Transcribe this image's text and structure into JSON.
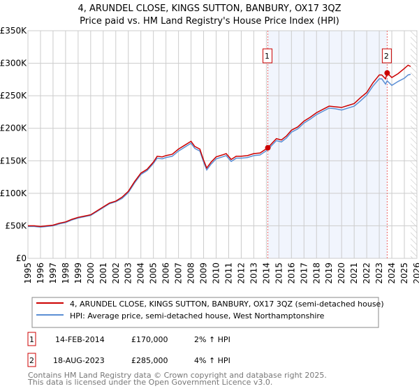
{
  "chart_data": {
    "type": "line",
    "title": "4, ARUNDEL CLOSE, KINGS SUTTON, BANBURY, OX17 3QZ",
    "subtitle": "Price paid vs. HM Land Registry's House Price Index (HPI)",
    "xlim": [
      1995,
      2026
    ],
    "ylim": [
      0,
      350000
    ],
    "y_ticks": [
      {
        "v": 0,
        "label": "£0"
      },
      {
        "v": 50000,
        "label": "£50K"
      },
      {
        "v": 100000,
        "label": "£100K"
      },
      {
        "v": 150000,
        "label": "£150K"
      },
      {
        "v": 200000,
        "label": "£200K"
      },
      {
        "v": 250000,
        "label": "£250K"
      },
      {
        "v": 300000,
        "label": "£300K"
      },
      {
        "v": 350000,
        "label": "£350K"
      }
    ],
    "x_ticks": [
      "1995",
      "1996",
      "1997",
      "1998",
      "1999",
      "2000",
      "2001",
      "2002",
      "2003",
      "2004",
      "2005",
      "2006",
      "2007",
      "2008",
      "2009",
      "2010",
      "2011",
      "2012",
      "2013",
      "2014",
      "2015",
      "2016",
      "2017",
      "2018",
      "2019",
      "2020",
      "2021",
      "2022",
      "2023",
      "2024",
      "2025",
      "2026"
    ],
    "grid": true,
    "shaded_range": [
      2014.12,
      2023.63
    ],
    "hatched_from": 2025.5,
    "series": [
      {
        "name": "4, ARUNDEL CLOSE, KINGS SUTTON, BANBURY, OX17 3QZ (semi-detached house)",
        "color": "#cc0000",
        "x": [
          1995,
          1995.5,
          1996,
          1996.5,
          1997,
          1997.5,
          1998,
          1998.5,
          1999,
          1999.5,
          2000,
          2000.5,
          2001,
          2001.5,
          2002,
          2002.5,
          2003,
          2003.5,
          2004,
          2004.5,
          2005,
          2005.3,
          2005.7,
          2006,
          2006.5,
          2007,
          2007.5,
          2008,
          2008.3,
          2008.7,
          2009,
          2009.25,
          2009.6,
          2010,
          2010.5,
          2010.8,
          2011.2,
          2011.6,
          2012,
          2012.5,
          2013,
          2013.5,
          2014.12,
          2014.5,
          2014.8,
          2015.2,
          2015.6,
          2016,
          2016.5,
          2017,
          2017.5,
          2018,
          2018.5,
          2019,
          2019.5,
          2020,
          2020.5,
          2021,
          2021.5,
          2022,
          2022.5,
          2023,
          2023.2,
          2023.5,
          2023.63,
          2024,
          2024.5,
          2025,
          2025.3,
          2025.5
        ],
        "y": [
          50000,
          50000,
          49000,
          50000,
          51000,
          54000,
          56000,
          60000,
          63000,
          65000,
          67000,
          73000,
          79000,
          85000,
          88000,
          94000,
          103000,
          118000,
          131000,
          137000,
          148000,
          157000,
          156000,
          158000,
          160000,
          168000,
          174000,
          180000,
          172000,
          168000,
          151000,
          139000,
          148000,
          156000,
          159000,
          161000,
          152000,
          157000,
          157000,
          158000,
          161000,
          162000,
          170000,
          178000,
          184000,
          182000,
          188000,
          197000,
          202000,
          211000,
          217000,
          224000,
          229000,
          234000,
          233000,
          232000,
          235000,
          238000,
          247000,
          255000,
          270000,
          282000,
          282000,
          276000,
          285000,
          278000,
          284000,
          292000,
          297000,
          295000
        ]
      },
      {
        "name": "HPI: Average price, semi-detached house, West Northamptonshire",
        "color": "#5b8fd4",
        "x": [
          1995,
          1995.5,
          1996,
          1996.5,
          1997,
          1997.5,
          1998,
          1998.5,
          1999,
          1999.5,
          2000,
          2000.5,
          2001,
          2001.5,
          2002,
          2002.5,
          2003,
          2003.5,
          2004,
          2004.5,
          2005,
          2005.3,
          2005.7,
          2006,
          2006.5,
          2007,
          2007.5,
          2008,
          2008.3,
          2008.7,
          2009,
          2009.25,
          2009.6,
          2010,
          2010.5,
          2010.8,
          2011.2,
          2011.6,
          2012,
          2012.5,
          2013,
          2013.5,
          2014.12,
          2014.5,
          2014.8,
          2015.2,
          2015.6,
          2016,
          2016.5,
          2017,
          2017.5,
          2018,
          2018.5,
          2019,
          2019.5,
          2020,
          2020.5,
          2021,
          2021.5,
          2022,
          2022.5,
          2023,
          2023.2,
          2023.5,
          2023.63,
          2024,
          2024.5,
          2025,
          2025.3,
          2025.5
        ],
        "y": [
          49000,
          49000,
          48000,
          49000,
          50000,
          53000,
          55000,
          59000,
          62000,
          64000,
          66000,
          72000,
          78000,
          84000,
          87000,
          92000,
          101000,
          116000,
          129000,
          135000,
          146000,
          154000,
          153000,
          155000,
          157000,
          165000,
          171000,
          177000,
          169000,
          165000,
          148000,
          136000,
          145000,
          153000,
          156000,
          158000,
          149000,
          154000,
          154000,
          155000,
          158000,
          159000,
          167000,
          175000,
          181000,
          179000,
          185000,
          194000,
          199000,
          208000,
          214000,
          221000,
          226000,
          231000,
          230000,
          228000,
          231000,
          234000,
          242000,
          251000,
          265000,
          276000,
          276000,
          268000,
          273000,
          266000,
          272000,
          277000,
          282000,
          283000
        ]
      }
    ],
    "markers": [
      {
        "label": "1",
        "x": 2014.12,
        "y": 170000
      },
      {
        "label": "2",
        "x": 2023.63,
        "y": 285000
      }
    ]
  },
  "transactions": [
    {
      "num": "1",
      "date": "14-FEB-2014",
      "price": "£170,000",
      "hpi": "2% ↑ HPI"
    },
    {
      "num": "2",
      "date": "18-AUG-2023",
      "price": "£285,000",
      "hpi": "4% ↑ HPI"
    }
  ],
  "footer": {
    "line1": "Contains HM Land Registry data © Crown copyright and database right 2025.",
    "line2": "This data is licensed under the Open Government Licence v3.0."
  }
}
